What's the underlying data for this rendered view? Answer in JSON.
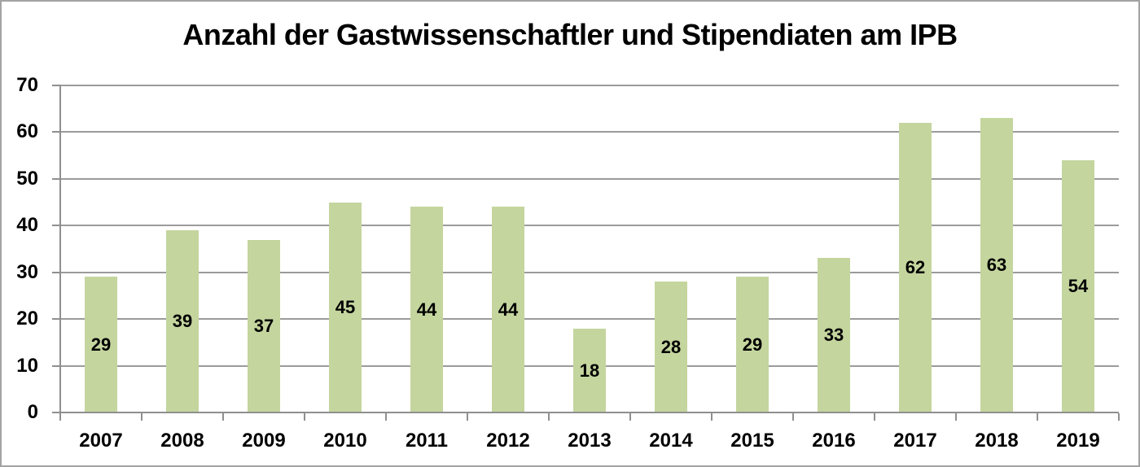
{
  "chart_data": {
    "type": "bar",
    "title": "Anzahl der Gastwissenschaftler und Stipendiaten am IPB",
    "categories": [
      "2007",
      "2008",
      "2009",
      "2010",
      "2011",
      "2012",
      "2013",
      "2014",
      "2015",
      "2016",
      "2017",
      "2018",
      "2019"
    ],
    "values": [
      29,
      39,
      37,
      45,
      44,
      44,
      18,
      28,
      29,
      33,
      62,
      63,
      54
    ],
    "xlabel": "",
    "ylabel": "",
    "ylim": [
      0,
      70
    ],
    "yticks": [
      0,
      10,
      20,
      30,
      40,
      50,
      60,
      70
    ],
    "grid": true,
    "legend": "none",
    "data_labels": true,
    "label_position": "center",
    "bar_color": "#c4d59e",
    "gridline_color": "#9b9b9b",
    "axis_color": "#8f8f8f",
    "text_color": "#000000",
    "background_color": "#ffffff"
  }
}
